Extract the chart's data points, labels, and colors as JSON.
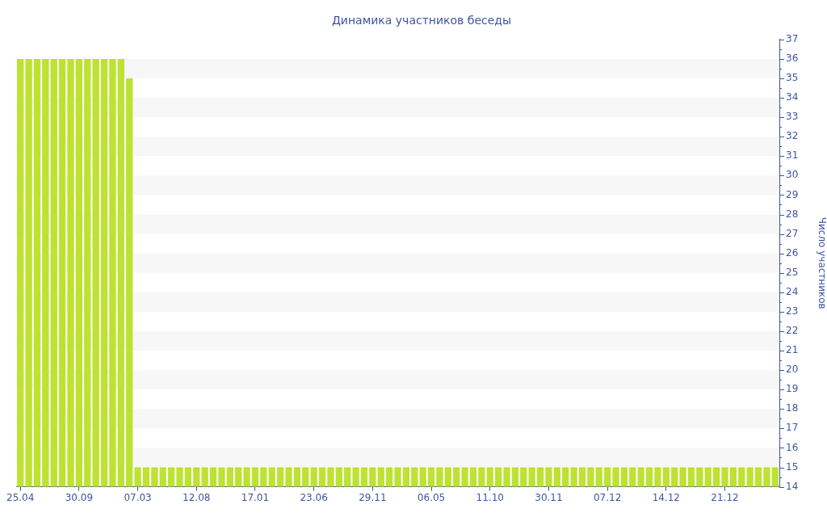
{
  "chart_data": {
    "type": "bar",
    "title": "Динамика участников беседы",
    "ylabel": "Число участников",
    "categories": [
      "25.04",
      null,
      null,
      null,
      null,
      null,
      null,
      "30.09",
      null,
      null,
      null,
      null,
      null,
      null,
      "07.03",
      null,
      null,
      null,
      null,
      null,
      null,
      "12.08",
      null,
      null,
      null,
      null,
      null,
      null,
      "17.01",
      null,
      null,
      null,
      null,
      null,
      null,
      "23.06",
      null,
      null,
      null,
      null,
      null,
      null,
      "29.11",
      null,
      null,
      null,
      null,
      null,
      null,
      "06.05",
      null,
      null,
      null,
      null,
      null,
      null,
      "11.10",
      null,
      null,
      null,
      null,
      null,
      null,
      "30.11",
      null,
      null,
      null,
      null,
      null,
      null,
      "07.12",
      null,
      null,
      null,
      null,
      null,
      null,
      "14.12",
      null,
      null,
      null,
      null,
      null,
      null,
      "21.12",
      null,
      null,
      null,
      null,
      null,
      null
    ],
    "values": [
      36,
      36,
      36,
      36,
      36,
      36,
      36,
      36,
      36,
      36,
      36,
      36,
      36,
      35,
      15,
      15,
      15,
      15,
      15,
      15,
      15,
      15,
      15,
      15,
      15,
      15,
      15,
      15,
      15,
      15,
      15,
      15,
      15,
      15,
      15,
      15,
      15,
      15,
      15,
      15,
      15,
      15,
      15,
      15,
      15,
      15,
      15,
      15,
      15,
      15,
      15,
      15,
      15,
      15,
      15,
      15,
      15,
      15,
      15,
      15,
      15,
      15,
      15,
      15,
      15,
      15,
      15,
      15,
      15,
      15,
      15,
      15,
      15,
      15,
      15,
      15,
      15,
      15,
      15,
      15,
      15,
      15,
      15,
      15,
      15,
      15,
      15,
      15,
      15,
      15,
      15
    ],
    "color": "#bde232",
    "ylim": [
      14,
      37
    ],
    "yticks": [
      14,
      {
        "value": 14.5,
        "label": null
      },
      15,
      {
        "value": 15.5,
        "label": null
      },
      16,
      {
        "value": 16.5,
        "label": null
      },
      17,
      {
        "value": 17.5,
        "label": null
      },
      18,
      {
        "value": 18.5,
        "label": null
      },
      19,
      {
        "value": 19.5,
        "label": null
      },
      20,
      {
        "value": 20.5,
        "label": null
      },
      21,
      {
        "value": 21.5,
        "label": null
      },
      22,
      {
        "value": 22.5,
        "label": null
      },
      23,
      {
        "value": 23.5,
        "label": null
      },
      24,
      {
        "value": 24.5,
        "label": null
      },
      25,
      {
        "value": 25.5,
        "label": null
      },
      26,
      {
        "value": 26.5,
        "label": null
      },
      27,
      {
        "value": 27.5,
        "label": null
      },
      28,
      {
        "value": 28.5,
        "label": null
      },
      29,
      {
        "value": 29.5,
        "label": null
      },
      30,
      {
        "value": 30.5,
        "label": null
      },
      31,
      {
        "value": 31.5,
        "label": null
      },
      32,
      {
        "value": 32.5,
        "label": null
      },
      33,
      {
        "value": 33.5,
        "label": null
      },
      34,
      {
        "value": 34.5,
        "label": null
      },
      35,
      {
        "value": 35.5,
        "label": null
      },
      36,
      {
        "value": 36.5,
        "label": null
      },
      37
    ],
    "bands": [
      {
        "axis": "y",
        "from": 15,
        "to": 16,
        "color": "#f7f7f7"
      },
      {
        "axis": "y",
        "from": 17,
        "to": 18,
        "color": "#f7f7f7"
      },
      {
        "axis": "y",
        "from": 19,
        "to": 20,
        "color": "#f7f7f7"
      },
      {
        "axis": "y",
        "from": 21,
        "to": 22,
        "color": "#f7f7f7"
      },
      {
        "axis": "y",
        "from": 23,
        "to": 24,
        "color": "#f7f7f7"
      },
      {
        "axis": "y",
        "from": 25,
        "to": 26,
        "color": "#f7f7f7"
      },
      {
        "axis": "y",
        "from": 27,
        "to": 28,
        "color": "#f7f7f7"
      },
      {
        "axis": "y",
        "from": 29,
        "to": 30,
        "color": "#f7f7f7"
      },
      {
        "axis": "y",
        "from": 31,
        "to": 32,
        "color": "#f7f7f7"
      },
      {
        "axis": "y",
        "from": 33,
        "to": 34,
        "color": "#f7f7f7"
      },
      {
        "axis": "y",
        "from": 35,
        "to": 36,
        "color": "#f7f7f7"
      }
    ]
  }
}
